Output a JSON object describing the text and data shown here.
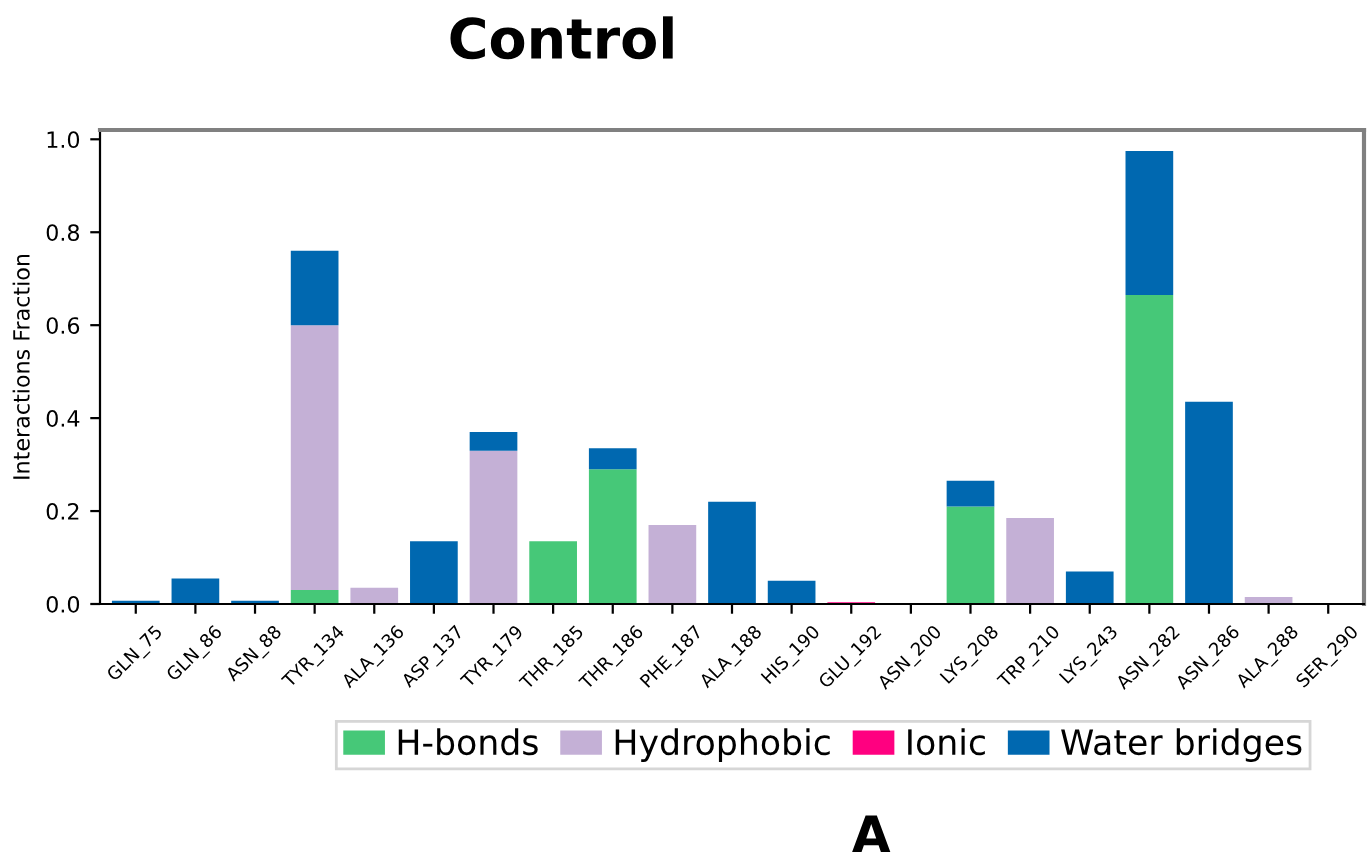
{
  "chart_data": {
    "type": "bar",
    "title": "Control",
    "ylabel": "Interactions Fraction",
    "stacked": true,
    "legend": "bottom",
    "grid": false,
    "categories": [
      "GLN_75",
      "GLN_86",
      "ASN_88",
      "TYR_134",
      "ALA_136",
      "ASP_137",
      "TYR_179",
      "THR_185",
      "THR_186",
      "PHE_187",
      "ALA_188",
      "HIS_190",
      "GLU_192",
      "ASN_200",
      "LYS_208",
      "TRP_210",
      "LYS_243",
      "ASN_282",
      "ASN_286",
      "ALA_288",
      "SER_290"
    ],
    "series": [
      {
        "name": "H-bonds",
        "color": "#46c878",
        "values": [
          0,
          0,
          0,
          0.03,
          0,
          0,
          0,
          0.135,
          0.29,
          0,
          0,
          0,
          0,
          0,
          0.21,
          0,
          0,
          0.665,
          0,
          0,
          0
        ]
      },
      {
        "name": "Hydrophobic",
        "color": "#c4b0d6",
        "values": [
          0,
          0,
          0,
          0.57,
          0.035,
          0,
          0.33,
          0,
          0,
          0.17,
          0,
          0,
          0,
          0,
          0,
          0.185,
          0,
          0,
          0,
          0.015,
          0
        ]
      },
      {
        "name": "Ionic",
        "color": "#ff0080",
        "values": [
          0,
          0,
          0,
          0,
          0,
          0,
          0,
          0,
          0,
          0,
          0,
          0,
          0.004,
          0,
          0,
          0,
          0,
          0,
          0,
          0,
          0
        ]
      },
      {
        "name": "Water bridges",
        "color": "#0068b0",
        "values": [
          0.007,
          0.055,
          0.007,
          0.16,
          0,
          0.135,
          0.04,
          0,
          0.045,
          0,
          0.22,
          0.05,
          0,
          null,
          0.055,
          0,
          0.07,
          0.31,
          0.435,
          0,
          null
        ]
      }
    ],
    "ylim": [
      0,
      1.02
    ],
    "yticks": [
      {
        "value": 0,
        "label": "0.0"
      },
      {
        "value": 0.2,
        "label": "0.2"
      },
      {
        "value": 0.4,
        "label": "0.4"
      },
      {
        "value": 0.6,
        "label": "0.6"
      },
      {
        "value": 0.8,
        "label": "0.8"
      },
      {
        "value": 1.0,
        "label": "1.0"
      }
    ],
    "annotations": [
      "A"
    ]
  }
}
